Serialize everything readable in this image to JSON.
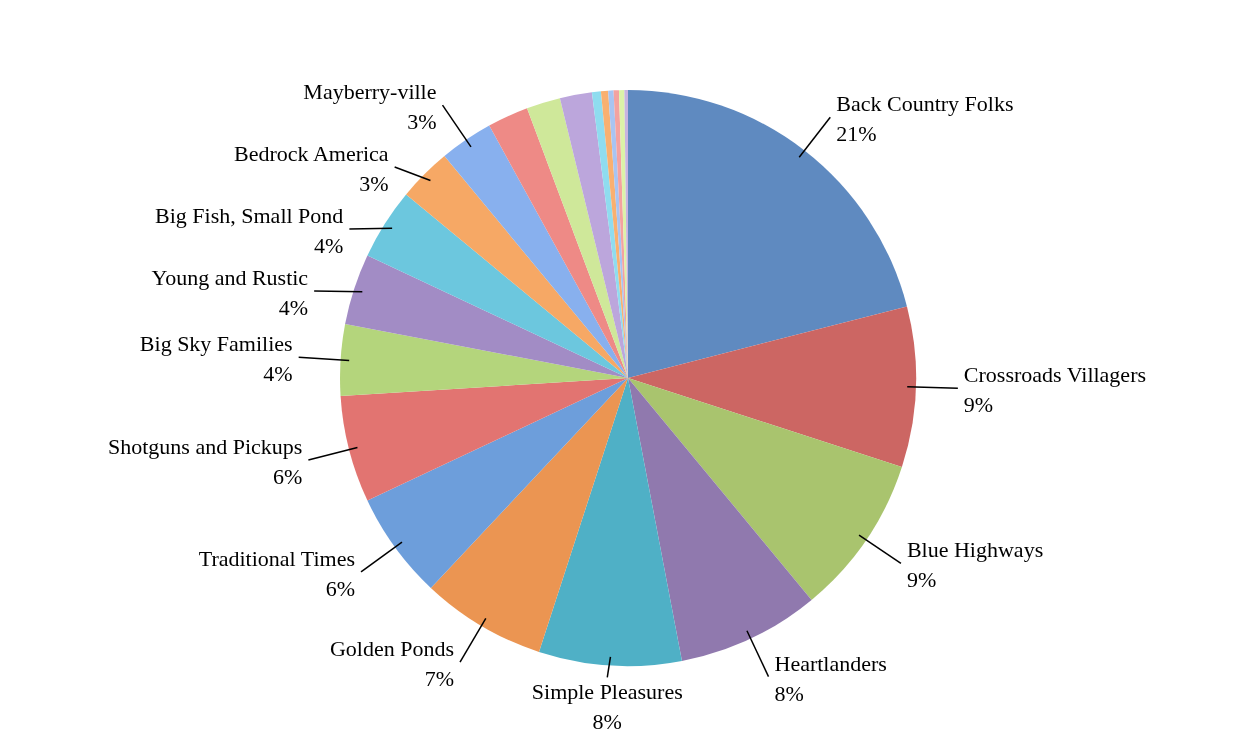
{
  "chart_data": {
    "type": "pie",
    "categories": [
      "Back Country Folks",
      "Crossroads Villagers",
      "Blue Highways",
      "Heartlanders",
      "Simple Pleasures",
      "Golden Ponds",
      "Traditional Times",
      "Shotguns and Pickups",
      "Big Sky Families",
      "Young and Rustic",
      "Big Fish, Small Pond",
      "Bedrock America",
      "Mayberry-ville",
      null,
      null,
      null,
      null,
      null,
      null,
      null,
      null,
      null
    ],
    "values": [
      21,
      9,
      9,
      8,
      8,
      7,
      6,
      6,
      4,
      4,
      4,
      3,
      3,
      2.3,
      1.9,
      1.8,
      0.5,
      0.4,
      0.3,
      0.3,
      0.3,
      0.2
    ],
    "value_labels": [
      "21%",
      "9%",
      "9%",
      "8%",
      "8%",
      "7%",
      "6%",
      "6%",
      "4%",
      "4%",
      "4%",
      "3%",
      "3%",
      null,
      null,
      null,
      null,
      null,
      null,
      null,
      null,
      null
    ],
    "colors": [
      "#5f8ac0",
      "#cc6663",
      "#a9c46e",
      "#9079ae",
      "#4fb0c6",
      "#eb9552",
      "#6d9edb",
      "#e27471",
      "#b4d57c",
      "#a28cc5",
      "#6cc7de",
      "#f6a865",
      "#88b0ee",
      "#ee8a86",
      "#cfe89a",
      "#bca6dc",
      "#8fdcef",
      "#f9b070",
      "#a8c4f2",
      "#f4a2a0",
      "#dcf2a8",
      "#c8b4e0"
    ]
  }
}
